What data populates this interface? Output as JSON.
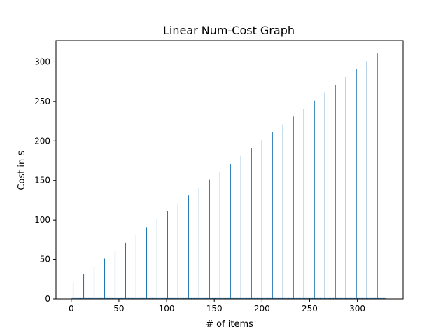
{
  "chart_data": {
    "type": "bar",
    "title": "Linear Num-Cost Graph",
    "xlabel": "# of items",
    "ylabel": "Cost in $",
    "xlim": [
      -16,
      348
    ],
    "ylim": [
      0,
      327
    ],
    "xticks": [
      0,
      50,
      100,
      150,
      200,
      250,
      300
    ],
    "yticks": [
      0,
      50,
      100,
      150,
      200,
      250,
      300
    ],
    "grid": false,
    "legend": "none",
    "series_color": "#1f77b4",
    "baseline_range": [
      1,
      330
    ],
    "baseline_value": 1,
    "bars": [
      {
        "x": 2,
        "y": 21
      },
      {
        "x": 13,
        "y": 31
      },
      {
        "x": 24,
        "y": 41
      },
      {
        "x": 35,
        "y": 51
      },
      {
        "x": 46,
        "y": 61
      },
      {
        "x": 57,
        "y": 71
      },
      {
        "x": 68,
        "y": 81
      },
      {
        "x": 79,
        "y": 91
      },
      {
        "x": 90,
        "y": 101
      },
      {
        "x": 101,
        "y": 111
      },
      {
        "x": 112,
        "y": 121
      },
      {
        "x": 123,
        "y": 131
      },
      {
        "x": 134,
        "y": 141
      },
      {
        "x": 145,
        "y": 151
      },
      {
        "x": 156,
        "y": 161
      },
      {
        "x": 167,
        "y": 171
      },
      {
        "x": 178,
        "y": 181
      },
      {
        "x": 189,
        "y": 191
      },
      {
        "x": 200,
        "y": 201
      },
      {
        "x": 211,
        "y": 211
      },
      {
        "x": 222,
        "y": 221
      },
      {
        "x": 233,
        "y": 231
      },
      {
        "x": 244,
        "y": 241
      },
      {
        "x": 255,
        "y": 251
      },
      {
        "x": 266,
        "y": 261
      },
      {
        "x": 277,
        "y": 271
      },
      {
        "x": 288,
        "y": 281
      },
      {
        "x": 299,
        "y": 291
      },
      {
        "x": 310,
        "y": 301
      },
      {
        "x": 321,
        "y": 311
      }
    ]
  }
}
